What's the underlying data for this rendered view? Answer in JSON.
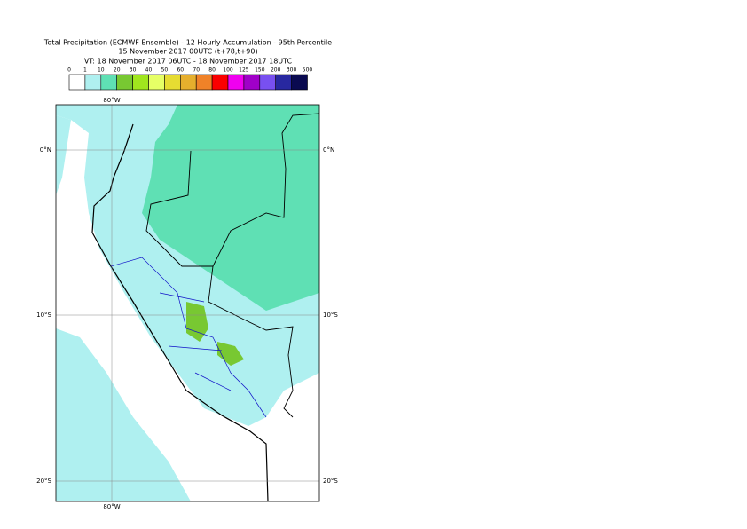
{
  "title": [
    "Total Precipitation (ECMWF Ensemble) - 12 Hourly Accumulation - 95th Percentile",
    "15 November 2017 00UTC (t+78,t+90)",
    "VT: 18 November 2017 06UTC - 18 November 2017 18UTC"
  ],
  "legend": {
    "labels": [
      "0",
      "1",
      "10",
      "20",
      "30",
      "40",
      "50",
      "60",
      "70",
      "80",
      "100",
      "125",
      "150",
      "200",
      "300",
      "500"
    ],
    "colors": [
      "#ffffff",
      "#aff0f0",
      "#5fe0b4",
      "#78c832",
      "#a0e61e",
      "#e6ff66",
      "#e6dc32",
      "#e6af2d",
      "#f08228",
      "#fa0000",
      "#f000f0",
      "#a000c8",
      "#7850f0",
      "#2828a0",
      "#0a0a50"
    ]
  },
  "map": {
    "lon_labels": [
      "80°W",
      "80°W"
    ],
    "lat_labels": [
      "0°N",
      "10°S",
      "20°S"
    ]
  }
}
